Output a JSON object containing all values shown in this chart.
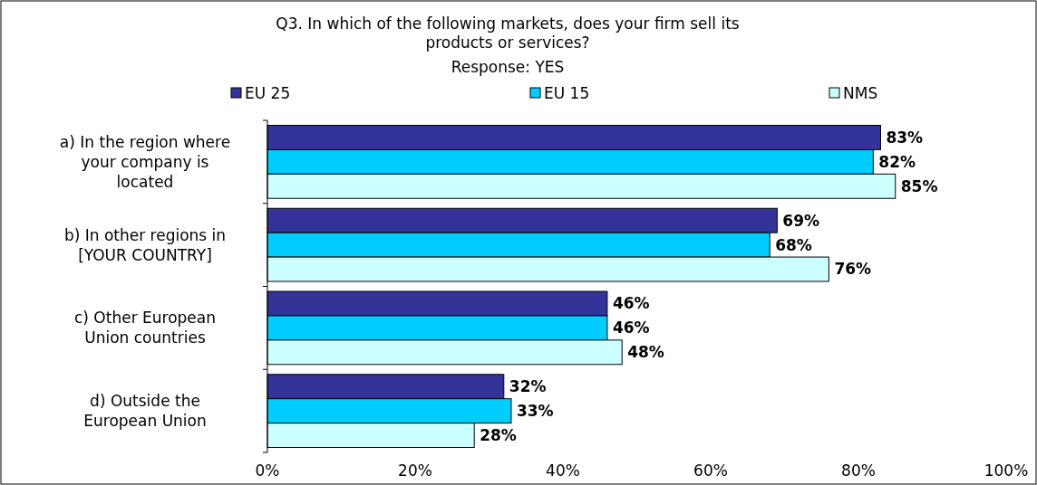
{
  "chart_data": {
    "type": "bar",
    "orientation": "horizontal",
    "title": "Q3. In which of the following markets, does your firm sell its products or services?",
    "subtitle": "Response: YES",
    "categories": [
      "a) In the region where your company is located",
      "b) In other regions in [YOUR COUNTRY]",
      "c) Other European Union countries",
      "d) Outside the European Union"
    ],
    "series": [
      {
        "name": "EU 25",
        "color": "#333399",
        "values": [
          83,
          69,
          46,
          32
        ],
        "value_labels": [
          "83%",
          "69%",
          "46%",
          "32%"
        ]
      },
      {
        "name": "EU 15",
        "color": "#00ccff",
        "values": [
          82,
          68,
          46,
          33
        ],
        "value_labels": [
          "82%",
          "68%",
          "46%",
          "33%"
        ]
      },
      {
        "name": "NMS",
        "color": "#ccffff",
        "values": [
          85,
          76,
          48,
          28
        ],
        "value_labels": [
          "85%",
          "76%",
          "48%",
          "28%"
        ]
      }
    ],
    "xlim": [
      0,
      100
    ],
    "xticks": [
      {
        "value": 0,
        "label": "0%"
      },
      {
        "value": 20,
        "label": "20%"
      },
      {
        "value": 40,
        "label": "40%"
      },
      {
        "value": 60,
        "label": "60%"
      },
      {
        "value": 80,
        "label": "80%"
      },
      {
        "value": 100,
        "label": "100%"
      }
    ],
    "grid": false,
    "legend": "top"
  }
}
